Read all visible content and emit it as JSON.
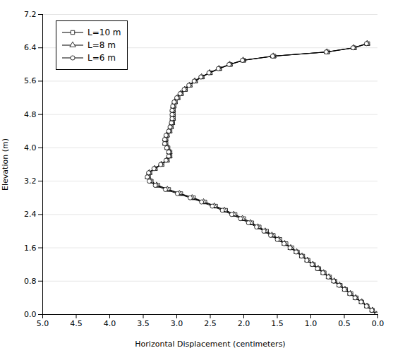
{
  "chart_data": {
    "type": "line",
    "xlabel": "Horizontal Displacement (centimeters)",
    "ylabel": "Elevation (m)",
    "xlim": [
      5,
      0
    ],
    "ylim": [
      0,
      7.2
    ],
    "xticks": [
      {
        "value": 5,
        "label": "5.0"
      },
      4.5,
      {
        "value": 4,
        "label": "4.0"
      },
      3.5,
      {
        "value": 3,
        "label": "3.0"
      },
      2.5,
      {
        "value": 2,
        "label": "2.0"
      },
      1.5,
      {
        "value": 1,
        "label": "1.0"
      },
      0.5,
      {
        "value": 0,
        "label": "0.0"
      }
    ],
    "yticks": [
      {
        "value": 0,
        "label": "0.0"
      },
      0.8,
      1.6,
      2.4,
      3.2,
      {
        "value": 4,
        "label": "4.0"
      },
      4.8,
      5.6,
      6.4,
      7.2
    ],
    "grid": "y",
    "legend": "upper left",
    "series": [
      {
        "name": "L=10 m",
        "color": "#000000",
        "marker": "square",
        "x": [
          0.02,
          0.08,
          0.16,
          0.24,
          0.32,
          0.4,
          0.48,
          0.56,
          0.64,
          0.72,
          0.8,
          0.88,
          0.96,
          1.04,
          1.12,
          1.2,
          1.28,
          1.37,
          1.46,
          1.56,
          1.66,
          1.77,
          1.88,
          2.0,
          2.13,
          2.27,
          2.42,
          2.58,
          2.75,
          2.94,
          3.12,
          3.28,
          3.38,
          3.42,
          3.4,
          3.32,
          3.22,
          3.14,
          3.1,
          3.1,
          3.13,
          3.16,
          3.16,
          3.14,
          3.1,
          3.08,
          3.06,
          3.05,
          3.05,
          3.05,
          3.04,
          3.02,
          2.98,
          2.93,
          2.87,
          2.8,
          2.72,
          2.62,
          2.5,
          2.36,
          2.2,
          2.0,
          1.55,
          0.75,
          0.35,
          0.15
        ],
        "values": [
          0.0,
          0.1,
          0.2,
          0.3,
          0.4,
          0.5,
          0.6,
          0.7,
          0.8,
          0.9,
          1.0,
          1.1,
          1.2,
          1.3,
          1.4,
          1.5,
          1.6,
          1.7,
          1.8,
          1.9,
          2.0,
          2.1,
          2.2,
          2.3,
          2.4,
          2.5,
          2.6,
          2.7,
          2.8,
          2.9,
          3.0,
          3.1,
          3.2,
          3.3,
          3.4,
          3.5,
          3.6,
          3.7,
          3.8,
          3.9,
          4.0,
          4.1,
          4.2,
          4.3,
          4.4,
          4.5,
          4.6,
          4.7,
          4.8,
          4.9,
          5.0,
          5.1,
          5.2,
          5.3,
          5.4,
          5.5,
          5.6,
          5.7,
          5.8,
          5.9,
          6.0,
          6.1,
          6.2,
          6.3,
          6.4,
          6.5
        ]
      },
      {
        "name": "L=8 m",
        "color": "#000000",
        "marker": "triangle",
        "x": [
          0.02,
          0.08,
          0.16,
          0.24,
          0.33,
          0.41,
          0.49,
          0.57,
          0.65,
          0.73,
          0.81,
          0.89,
          0.97,
          1.05,
          1.13,
          1.21,
          1.3,
          1.39,
          1.48,
          1.58,
          1.68,
          1.79,
          1.9,
          2.02,
          2.15,
          2.29,
          2.44,
          2.6,
          2.77,
          2.96,
          3.14,
          3.3,
          3.39,
          3.43,
          3.41,
          3.33,
          3.23,
          3.15,
          3.11,
          3.11,
          3.14,
          3.17,
          3.17,
          3.15,
          3.11,
          3.09,
          3.07,
          3.06,
          3.06,
          3.06,
          3.05,
          3.03,
          2.99,
          2.94,
          2.88,
          2.81,
          2.73,
          2.63,
          2.51,
          2.37,
          2.21,
          2.01,
          1.56,
          0.76,
          0.36,
          0.16
        ],
        "values": [
          0.0,
          0.1,
          0.2,
          0.3,
          0.4,
          0.5,
          0.6,
          0.7,
          0.8,
          0.9,
          1.0,
          1.1,
          1.2,
          1.3,
          1.4,
          1.5,
          1.6,
          1.7,
          1.8,
          1.9,
          2.0,
          2.1,
          2.2,
          2.3,
          2.4,
          2.5,
          2.6,
          2.7,
          2.8,
          2.9,
          3.0,
          3.1,
          3.2,
          3.3,
          3.4,
          3.5,
          3.6,
          3.7,
          3.8,
          3.9,
          4.0,
          4.1,
          4.2,
          4.3,
          4.4,
          4.5,
          4.6,
          4.7,
          4.8,
          4.9,
          5.0,
          5.1,
          5.2,
          5.3,
          5.4,
          5.5,
          5.6,
          5.7,
          5.8,
          5.9,
          6.0,
          6.1,
          6.2,
          6.3,
          6.4,
          6.5
        ]
      },
      {
        "name": "L=6 m",
        "color": "#000000",
        "marker": "circle",
        "x": [
          0.02,
          0.09,
          0.17,
          0.25,
          0.34,
          0.42,
          0.5,
          0.58,
          0.66,
          0.74,
          0.82,
          0.9,
          0.98,
          1.06,
          1.14,
          1.22,
          1.31,
          1.4,
          1.5,
          1.6,
          1.7,
          1.81,
          1.93,
          2.05,
          2.18,
          2.32,
          2.47,
          2.63,
          2.8,
          2.99,
          3.17,
          3.32,
          3.41,
          3.44,
          3.42,
          3.34,
          3.24,
          3.16,
          3.12,
          3.12,
          3.15,
          3.18,
          3.18,
          3.16,
          3.12,
          3.1,
          3.08,
          3.07,
          3.07,
          3.07,
          3.06,
          3.04,
          3.0,
          2.95,
          2.89,
          2.82,
          2.74,
          2.64,
          2.52,
          2.38,
          2.22,
          2.02,
          1.57,
          0.77,
          0.37,
          0.17
        ],
        "values": [
          0.0,
          0.1,
          0.2,
          0.3,
          0.4,
          0.5,
          0.6,
          0.7,
          0.8,
          0.9,
          1.0,
          1.1,
          1.2,
          1.3,
          1.4,
          1.5,
          1.6,
          1.7,
          1.8,
          1.9,
          2.0,
          2.1,
          2.2,
          2.3,
          2.4,
          2.5,
          2.6,
          2.7,
          2.8,
          2.9,
          3.0,
          3.1,
          3.2,
          3.3,
          3.4,
          3.5,
          3.6,
          3.7,
          3.8,
          3.9,
          4.0,
          4.1,
          4.2,
          4.3,
          4.4,
          4.5,
          4.6,
          4.7,
          4.8,
          4.9,
          5.0,
          5.1,
          5.2,
          5.3,
          5.4,
          5.5,
          5.6,
          5.7,
          5.8,
          5.9,
          6.0,
          6.1,
          6.2,
          6.3,
          6.4,
          6.5
        ]
      }
    ]
  }
}
